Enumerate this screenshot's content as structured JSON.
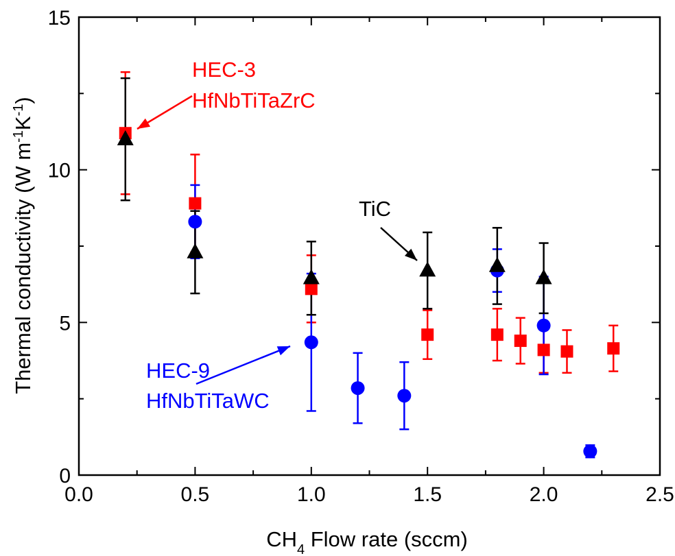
{
  "chart_data": {
    "type": "scatter",
    "xlabel": {
      "main": "CH",
      "sub": "4",
      "rest": " Flow rate (sccm)"
    },
    "ylabel": {
      "p1": "Thermal conductivity (W m",
      "sup1": "-1",
      "p2": "K",
      "sup2": "-1",
      "p3": ")"
    },
    "xlim": [
      0.0,
      2.5
    ],
    "ylim": [
      0,
      15
    ],
    "xticks": [
      0.0,
      0.5,
      1.0,
      1.5,
      2.0,
      2.5
    ],
    "xtick_labels": [
      "0.0",
      "0.5",
      "1.0",
      "1.5",
      "2.0",
      "2.5"
    ],
    "yticks": [
      0,
      5,
      10,
      15
    ],
    "ytick_labels": [
      "0",
      "5",
      "10",
      "15"
    ],
    "grid": false,
    "series": [
      {
        "name": "HEC-3 HfNbTiTaZrC",
        "color": "#ff0000",
        "marker": "square",
        "points": [
          {
            "x": 0.2,
            "y": 11.2,
            "err": 2.0
          },
          {
            "x": 0.5,
            "y": 8.9,
            "err": 1.6
          },
          {
            "x": 1.0,
            "y": 6.1,
            "err": 1.1
          },
          {
            "x": 1.5,
            "y": 4.6,
            "err": 0.8
          },
          {
            "x": 1.8,
            "y": 4.6,
            "err": 0.85
          },
          {
            "x": 1.9,
            "y": 4.4,
            "err": 0.75
          },
          {
            "x": 2.0,
            "y": 4.1,
            "err": 0.75
          },
          {
            "x": 2.1,
            "y": 4.05,
            "err": 0.7
          },
          {
            "x": 2.3,
            "y": 4.15,
            "err": 0.75
          }
        ]
      },
      {
        "name": "HEC-9 HfNbTiTaWC",
        "color": "#0000ff",
        "marker": "circle",
        "points": [
          {
            "x": 0.5,
            "y": 8.3,
            "err": 1.2
          },
          {
            "x": 1.0,
            "y": 4.35,
            "err": 2.25
          },
          {
            "x": 1.2,
            "y": 2.85,
            "err": 1.15
          },
          {
            "x": 1.4,
            "y": 2.6,
            "err": 1.1
          },
          {
            "x": 1.8,
            "y": 6.7,
            "err": 0.7
          },
          {
            "x": 2.0,
            "y": 4.9,
            "err": 1.6
          },
          {
            "x": 2.2,
            "y": 0.78,
            "err": 0.2
          }
        ]
      },
      {
        "name": "TiC",
        "color": "#000000",
        "marker": "triangle",
        "points": [
          {
            "x": 0.2,
            "y": 11.0,
            "err": 2.0
          },
          {
            "x": 0.5,
            "y": 7.3,
            "err": 1.35
          },
          {
            "x": 1.0,
            "y": 6.45,
            "err": 1.2
          },
          {
            "x": 1.5,
            "y": 6.7,
            "err": 1.25
          },
          {
            "x": 1.8,
            "y": 6.85,
            "err": 1.25
          },
          {
            "x": 2.0,
            "y": 6.45,
            "err": 1.15
          }
        ]
      }
    ],
    "annotations": [
      {
        "lines": [
          "HEC-3",
          "HfNbTiTaZrC"
        ],
        "color": "#ff0000"
      },
      {
        "lines": [
          "HEC-9",
          "HfNbTiTaWC"
        ],
        "color": "#0000ff"
      },
      {
        "lines": [
          "TiC"
        ],
        "color": "#000000"
      }
    ]
  }
}
